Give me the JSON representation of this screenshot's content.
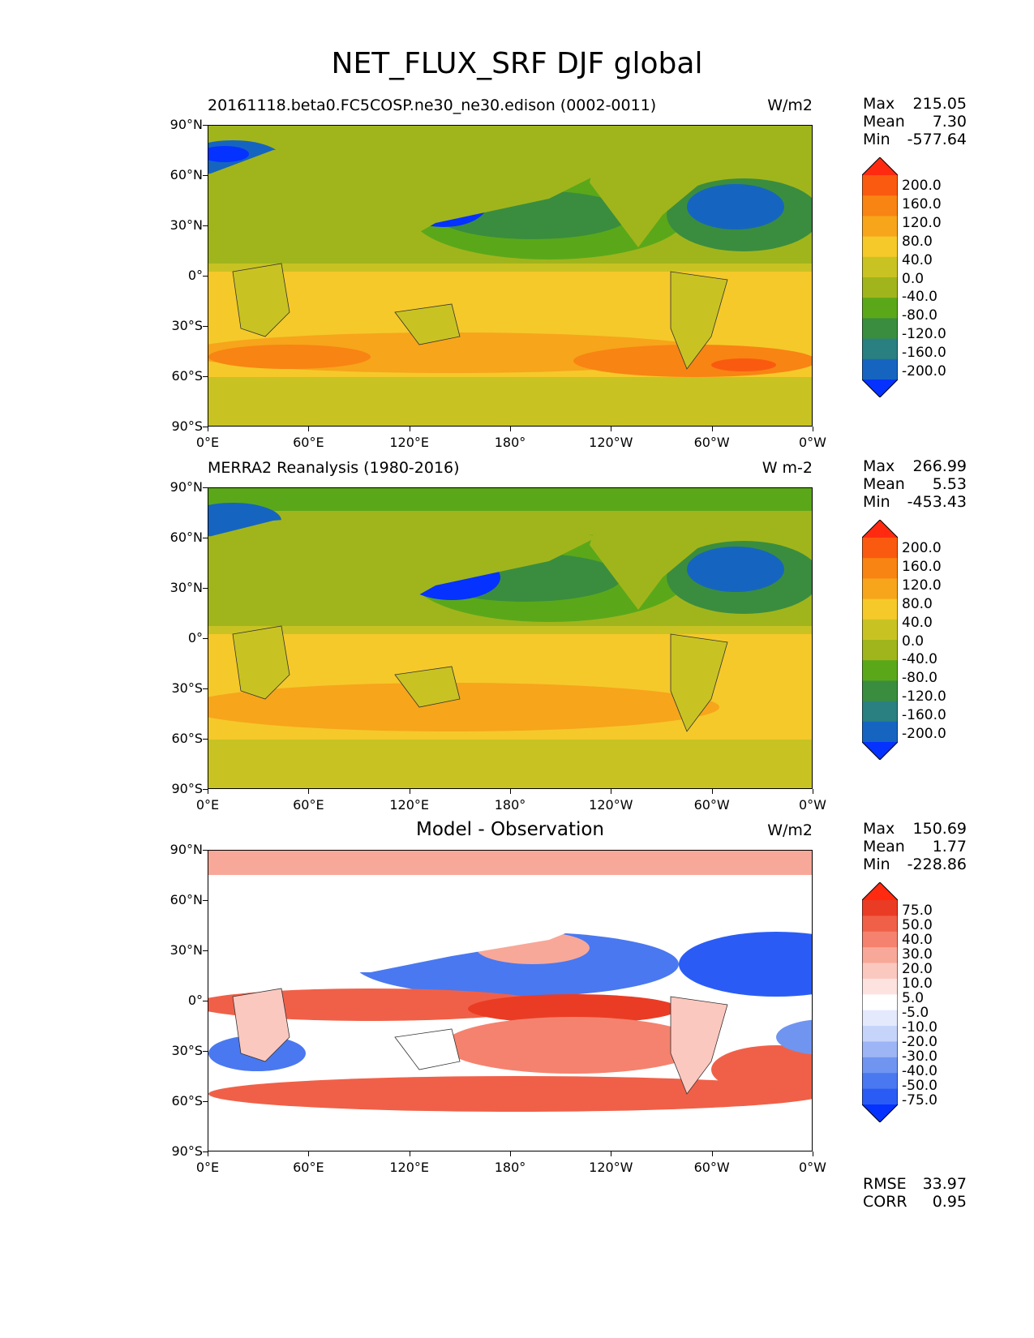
{
  "title": "NET_FLUX_SRF DJF global",
  "x_ticks": [
    "0°E",
    "60°E",
    "120°E",
    "180°",
    "120°W",
    "60°W",
    "0°W"
  ],
  "y_ticks": [
    "90°N",
    "60°N",
    "30°N",
    "0°",
    "30°S",
    "60°S",
    "90°S"
  ],
  "panels": [
    {
      "title": "20161118.beta0.FC5COSP.ne30_ne30.edison (0002-0011)",
      "units": "W/m2",
      "stats": {
        "max_label": "Max",
        "max": "215.05",
        "mean_label": "Mean",
        "mean": "7.30",
        "min_label": "Min",
        "min": "-577.64"
      },
      "colorbar_labels": [
        "200.0",
        "160.0",
        "120.0",
        "80.0",
        "40.0",
        "0.0",
        "-40.0",
        "-80.0",
        "-120.0",
        "-160.0",
        "-200.0"
      ]
    },
    {
      "title": "MERRA2 Reanalysis (1980-2016)",
      "units": "W m-2",
      "stats": {
        "max_label": "Max",
        "max": "266.99",
        "mean_label": "Mean",
        "mean": "5.53",
        "min_label": "Min",
        "min": "-453.43"
      },
      "colorbar_labels": [
        "200.0",
        "160.0",
        "120.0",
        "80.0",
        "40.0",
        "0.0",
        "-40.0",
        "-80.0",
        "-120.0",
        "-160.0",
        "-200.0"
      ]
    },
    {
      "title": "Model - Observation",
      "units": "W/m2",
      "stats": {
        "max_label": "Max",
        "max": "150.69",
        "mean_label": "Mean",
        "mean": "1.77",
        "min_label": "Min",
        "min": "-228.86"
      },
      "colorbar_labels": [
        "75.0",
        "50.0",
        "40.0",
        "30.0",
        "20.0",
        "10.0",
        "5.0",
        "-5.0",
        "-10.0",
        "-20.0",
        "-30.0",
        "-40.0",
        "-50.0",
        "-75.0"
      ],
      "rmse_label": "RMSE",
      "rmse": "33.97",
      "corr_label": "CORR",
      "corr": "0.95"
    }
  ],
  "colors": {
    "field_palette": [
      "#0532ff",
      "#1565c0",
      "#2a7f80",
      "#3a8d3e",
      "#5aa81a",
      "#a0b51c",
      "#c8c323",
      "#f5c92a",
      "#f7a51b",
      "#f88413",
      "#fa5a10",
      "#ff2a10"
    ],
    "diff_palette": [
      "#0532ff",
      "#2a5cf5",
      "#4a78f0",
      "#6f95f0",
      "#9db5f5",
      "#c6d4fa",
      "#e4eafc",
      "#ffffff",
      "#fde3df",
      "#fbc8bf",
      "#f8a898",
      "#f5826e",
      "#f06048",
      "#ea3c24",
      "#ff2a10"
    ]
  }
}
